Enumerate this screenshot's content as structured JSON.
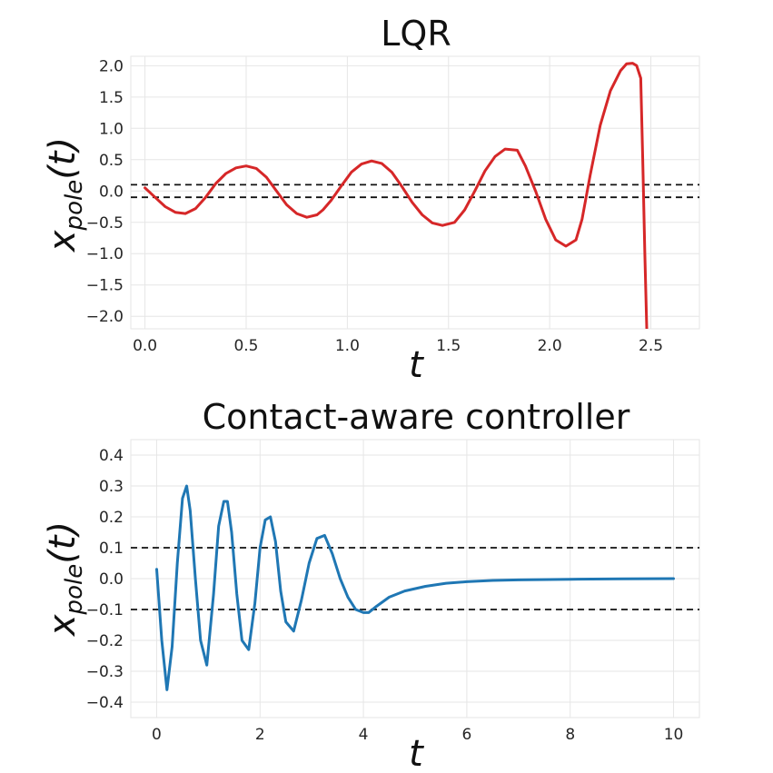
{
  "chart_data": [
    {
      "type": "line",
      "title": "LQR",
      "xlabel": "t",
      "ylabel": "x_pole(t)",
      "ylabel_main": "x",
      "ylabel_sub": "pole",
      "ylabel_arg": "(t)",
      "xlim": [
        -0.07,
        2.74
      ],
      "ylim": [
        -2.2,
        2.15
      ],
      "xticks": [
        0.0,
        0.5,
        1.0,
        1.5,
        2.0,
        2.5
      ],
      "xtick_labels": [
        "0.0",
        "0.5",
        "1.0",
        "1.5",
        "2.0",
        "2.5"
      ],
      "yticks": [
        2.0,
        1.5,
        1.0,
        0.5,
        0.0,
        -0.5,
        -1.0,
        -1.5,
        -2.0
      ],
      "ytick_labels": [
        "2.0",
        "1.5",
        "1.0",
        "0.5",
        "0.0",
        "−0.5",
        "−1.0",
        "−1.5",
        "−2.0"
      ],
      "grid": true,
      "reference_lines": [
        0.1,
        -0.1
      ],
      "series": [
        {
          "color": "#d62728",
          "x": [
            0.0,
            0.05,
            0.1,
            0.15,
            0.2,
            0.25,
            0.3,
            0.35,
            0.4,
            0.45,
            0.5,
            0.55,
            0.6,
            0.65,
            0.7,
            0.75,
            0.8,
            0.85,
            0.88,
            0.92,
            0.97,
            1.02,
            1.07,
            1.12,
            1.17,
            1.22,
            1.27,
            1.32,
            1.37,
            1.42,
            1.47,
            1.53,
            1.58,
            1.63,
            1.68,
            1.73,
            1.78,
            1.84,
            1.88,
            1.93,
            1.98,
            2.03,
            2.08,
            2.13,
            2.16,
            2.2,
            2.25,
            2.3,
            2.35,
            2.38,
            2.41,
            2.43,
            2.45,
            2.46,
            2.47,
            2.48
          ],
          "y": [
            0.05,
            -0.1,
            -0.25,
            -0.34,
            -0.36,
            -0.28,
            -0.1,
            0.12,
            0.28,
            0.37,
            0.4,
            0.36,
            0.22,
            0.0,
            -0.22,
            -0.36,
            -0.42,
            -0.38,
            -0.3,
            -0.15,
            0.08,
            0.3,
            0.43,
            0.48,
            0.44,
            0.3,
            0.07,
            -0.18,
            -0.38,
            -0.51,
            -0.55,
            -0.5,
            -0.3,
            0.0,
            0.32,
            0.55,
            0.67,
            0.65,
            0.4,
            0.0,
            -0.45,
            -0.78,
            -0.88,
            -0.78,
            -0.45,
            0.25,
            1.05,
            1.6,
            1.92,
            2.03,
            2.04,
            2.0,
            1.8,
            0.5,
            -1.0,
            -2.25
          ]
        }
      ]
    },
    {
      "type": "line",
      "title": "Contact-aware controller",
      "xlabel": "t",
      "ylabel": "x_pole(t)",
      "ylabel_main": "x",
      "ylabel_sub": "pole",
      "ylabel_arg": "(t)",
      "xlim": [
        -0.5,
        10.5
      ],
      "ylim": [
        -0.45,
        0.45
      ],
      "xticks": [
        0,
        2,
        4,
        6,
        8,
        10
      ],
      "xtick_labels": [
        "0",
        "2",
        "4",
        "6",
        "8",
        "10"
      ],
      "yticks": [
        0.4,
        0.3,
        0.2,
        0.1,
        0.0,
        -0.1,
        -0.2,
        -0.3,
        -0.4
      ],
      "ytick_labels": [
        "0.4",
        "0.3",
        "0.2",
        "0.1",
        "0.0",
        "−0.1",
        "−0.2",
        "−0.3",
        "−0.4"
      ],
      "grid": true,
      "reference_lines": [
        0.1,
        -0.1
      ],
      "series": [
        {
          "color": "#1f77b4",
          "x": [
            0.0,
            0.1,
            0.2,
            0.3,
            0.4,
            0.5,
            0.58,
            0.65,
            0.75,
            0.85,
            0.97,
            1.1,
            1.2,
            1.3,
            1.37,
            1.45,
            1.55,
            1.65,
            1.78,
            1.9,
            2.0,
            2.1,
            2.2,
            2.3,
            2.4,
            2.5,
            2.65,
            2.8,
            2.95,
            3.1,
            3.25,
            3.4,
            3.55,
            3.7,
            3.85,
            4.0,
            4.1,
            4.25,
            4.5,
            4.8,
            5.2,
            5.6,
            6.0,
            6.5,
            7.0,
            8.0,
            9.0,
            10.0
          ],
          "y": [
            0.03,
            -0.2,
            -0.36,
            -0.22,
            0.05,
            0.26,
            0.3,
            0.22,
            0.0,
            -0.2,
            -0.28,
            -0.05,
            0.17,
            0.25,
            0.25,
            0.15,
            -0.05,
            -0.2,
            -0.23,
            -0.08,
            0.1,
            0.19,
            0.2,
            0.12,
            -0.04,
            -0.14,
            -0.17,
            -0.07,
            0.05,
            0.13,
            0.14,
            0.08,
            0.0,
            -0.06,
            -0.1,
            -0.11,
            -0.11,
            -0.09,
            -0.06,
            -0.04,
            -0.025,
            -0.015,
            -0.01,
            -0.006,
            -0.004,
            -0.002,
            -0.001,
            0.0
          ]
        }
      ]
    }
  ]
}
